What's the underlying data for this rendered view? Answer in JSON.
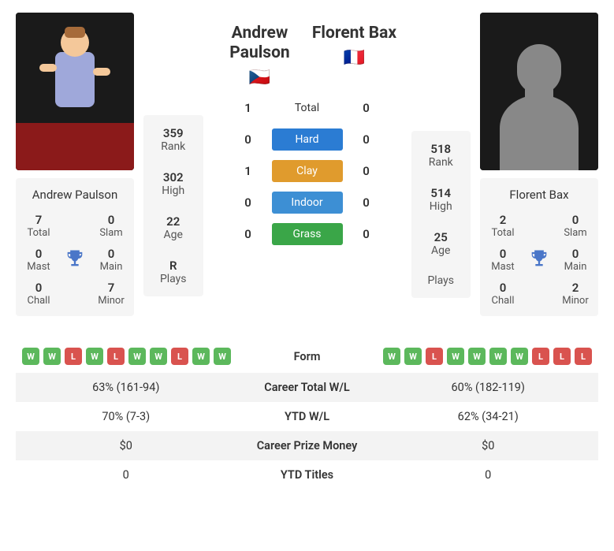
{
  "p1": {
    "name": "Andrew Paulson",
    "flag": "🇨🇿",
    "rank": "359",
    "high": "302",
    "age": "22",
    "plays": "R",
    "titles": {
      "total": "7",
      "slam": "0",
      "mast": "0",
      "main": "0",
      "chall": "0",
      "minor": "7"
    }
  },
  "p2": {
    "name": "Florent Bax",
    "flag": "🇫🇷",
    "rank": "518",
    "high": "514",
    "age": "25",
    "plays": "",
    "titles": {
      "total": "2",
      "slam": "0",
      "mast": "0",
      "main": "0",
      "chall": "0",
      "minor": "2"
    }
  },
  "labels": {
    "rank": "Rank",
    "high": "High",
    "age": "Age",
    "plays": "Plays",
    "total": "Total",
    "slam": "Slam",
    "mast": "Mast",
    "main": "Main",
    "chall": "Chall",
    "minor": "Minor",
    "h2h_total": "Total",
    "hard": "Hard",
    "clay": "Clay",
    "indoor": "Indoor",
    "grass": "Grass",
    "form": "Form",
    "career_wl": "Career Total W/L",
    "ytd_wl": "YTD W/L",
    "prize": "Career Prize Money",
    "ytd_titles": "YTD Titles"
  },
  "h2h": {
    "total": {
      "p1": "1",
      "p2": "0"
    },
    "hard": {
      "p1": "0",
      "p2": "0"
    },
    "clay": {
      "p1": "1",
      "p2": "0"
    },
    "indoor": {
      "p1": "0",
      "p2": "0"
    },
    "grass": {
      "p1": "0",
      "p2": "0"
    }
  },
  "form": {
    "p1": [
      "W",
      "W",
      "L",
      "W",
      "L",
      "W",
      "W",
      "L",
      "W",
      "W"
    ],
    "p2": [
      "W",
      "W",
      "L",
      "W",
      "W",
      "W",
      "W",
      "L",
      "L",
      "L"
    ]
  },
  "stats": {
    "career_wl": {
      "p1": "63% (161-94)",
      "p2": "60% (182-119)"
    },
    "ytd_wl": {
      "p1": "70% (7-3)",
      "p2": "62% (34-21)"
    },
    "prize": {
      "p1": "$0",
      "p2": "$0"
    },
    "ytd_titles": {
      "p1": "0",
      "p2": "0"
    }
  },
  "colors": {
    "win": "#5cb85c",
    "loss": "#d9534f",
    "hard": "#2b7cd3",
    "clay": "#e09b2d",
    "indoor": "#3d8fd4",
    "grass": "#3aa648",
    "trophy": "#4a76c8"
  }
}
